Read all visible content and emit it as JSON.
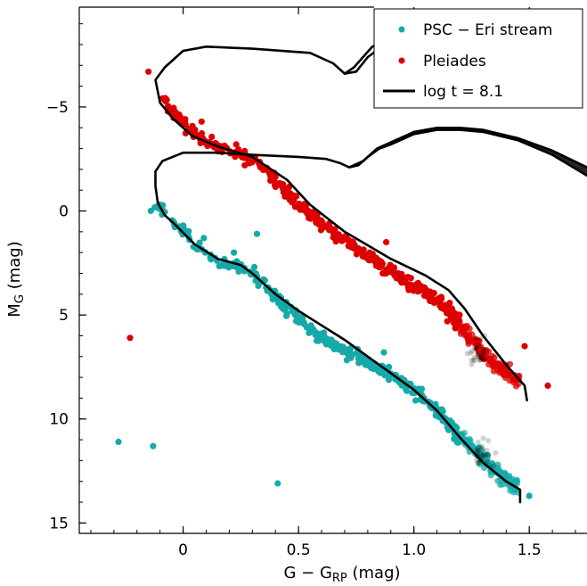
{
  "chart_data": {
    "type": "scatter",
    "xlabel": "G − G",
    "xlabel_sub": "RP",
    "xlabel_unit": " (mag)",
    "ylabel": "M",
    "ylabel_sub": "G",
    "ylabel_unit": " (mag)",
    "xlim": [
      -0.45,
      1.75
    ],
    "ylim": [
      15.5,
      -9.8
    ],
    "y_inverted": true,
    "x_ticks": [
      0,
      0.5,
      1.0,
      1.5
    ],
    "x_tick_labels": [
      "0",
      "0.5",
      "1.0",
      "1.5"
    ],
    "y_ticks": [
      -5,
      0,
      5,
      10,
      15
    ],
    "y_tick_labels": [
      "−5",
      "0",
      "5",
      "10",
      "15"
    ],
    "grid": false,
    "legend_position": "top-right",
    "colors": {
      "psc": "#17a9a9",
      "pleiades": "#dd0000",
      "isochrone": "#000000"
    },
    "series": [
      {
        "name": "PSC − Eri stream",
        "kind": "scatter",
        "sequence": [
          [
            -0.12,
            -0.2
          ],
          [
            -0.06,
            0.4
          ],
          [
            0.0,
            0.9
          ],
          [
            0.05,
            1.6
          ],
          [
            0.1,
            2.1
          ],
          [
            0.15,
            2.4
          ],
          [
            0.2,
            2.6
          ],
          [
            0.25,
            2.7
          ],
          [
            0.3,
            3.0
          ],
          [
            0.35,
            3.5
          ],
          [
            0.4,
            4.1
          ],
          [
            0.45,
            4.7
          ],
          [
            0.5,
            5.2
          ],
          [
            0.55,
            5.7
          ],
          [
            0.6,
            6.1
          ],
          [
            0.65,
            6.4
          ],
          [
            0.7,
            6.7
          ],
          [
            0.75,
            7.0
          ],
          [
            0.8,
            7.3
          ],
          [
            0.85,
            7.6
          ],
          [
            0.9,
            7.9
          ],
          [
            0.95,
            8.2
          ],
          [
            1.0,
            8.6
          ],
          [
            1.05,
            9.1
          ],
          [
            1.1,
            9.6
          ],
          [
            1.15,
            10.2
          ],
          [
            1.2,
            10.8
          ],
          [
            1.25,
            11.4
          ],
          [
            1.3,
            11.9
          ],
          [
            1.35,
            12.4
          ],
          [
            1.4,
            12.9
          ],
          [
            1.45,
            13.2
          ]
        ],
        "outliers": [
          [
            -0.28,
            11.1
          ],
          [
            -0.13,
            11.3
          ],
          [
            0.41,
            13.1
          ],
          [
            0.32,
            1.1
          ],
          [
            0.22,
            2.0
          ],
          [
            0.87,
            6.8
          ],
          [
            1.5,
            13.7
          ],
          [
            -0.14,
            0.0
          ],
          [
            0.09,
            1.3
          ]
        ]
      },
      {
        "name": "Pleiades",
        "kind": "scatter",
        "sequence": [
          [
            -0.09,
            -5.4
          ],
          [
            -0.06,
            -4.9
          ],
          [
            -0.02,
            -4.5
          ],
          [
            0.02,
            -4.0
          ],
          [
            0.06,
            -3.6
          ],
          [
            0.1,
            -3.3
          ],
          [
            0.15,
            -3.1
          ],
          [
            0.2,
            -2.9
          ],
          [
            0.25,
            -2.7
          ],
          [
            0.3,
            -2.4
          ],
          [
            0.35,
            -2.1
          ],
          [
            0.4,
            -1.5
          ],
          [
            0.45,
            -0.9
          ],
          [
            0.5,
            -0.3
          ],
          [
            0.55,
            0.2
          ],
          [
            0.6,
            0.6
          ],
          [
            0.65,
            1.0
          ],
          [
            0.7,
            1.4
          ],
          [
            0.75,
            1.8
          ],
          [
            0.8,
            2.2
          ],
          [
            0.85,
            2.5
          ],
          [
            0.9,
            2.9
          ],
          [
            0.95,
            3.3
          ],
          [
            1.0,
            3.6
          ],
          [
            1.05,
            3.9
          ],
          [
            1.1,
            4.3
          ],
          [
            1.15,
            4.8
          ],
          [
            1.2,
            5.5
          ],
          [
            1.25,
            6.2
          ],
          [
            1.3,
            6.8
          ],
          [
            1.35,
            7.3
          ],
          [
            1.4,
            7.8
          ],
          [
            1.45,
            8.3
          ]
        ],
        "outliers": [
          [
            -0.15,
            -6.7
          ],
          [
            -0.23,
            6.1
          ],
          [
            1.58,
            8.4
          ],
          [
            0.23,
            -3.2
          ],
          [
            0.88,
            1.5
          ],
          [
            0.08,
            -4.3
          ],
          [
            1.48,
            6.5
          ]
        ]
      },
      {
        "name": "log t = 8.1",
        "kind": "line",
        "segments": [
          [
            [
              -0.08,
              -6.9
            ],
            [
              -0.12,
              -6.3
            ],
            [
              -0.1,
              -5.2
            ],
            [
              -0.04,
              -4.4
            ],
            [
              0.04,
              -3.6
            ],
            [
              0.15,
              -3.1
            ],
            [
              0.3,
              -2.6
            ],
            [
              0.45,
              -1.5
            ],
            [
              0.55,
              -0.3
            ],
            [
              0.7,
              1.0
            ],
            [
              0.9,
              2.3
            ],
            [
              1.05,
              3.1
            ],
            [
              1.15,
              3.8
            ],
            [
              1.22,
              4.7
            ],
            [
              1.3,
              6.0
            ],
            [
              1.4,
              7.4
            ],
            [
              1.48,
              8.4
            ],
            [
              1.49,
              9.1
            ]
          ],
          [
            [
              -0.08,
              -6.9
            ],
            [
              0.0,
              -7.7
            ],
            [
              0.1,
              -7.9
            ],
            [
              0.3,
              -7.8
            ],
            [
              0.55,
              -7.6
            ],
            [
              0.65,
              -7.1
            ],
            [
              0.7,
              -6.6
            ],
            [
              0.75,
              -6.7
            ],
            [
              0.8,
              -7.4
            ],
            [
              0.85,
              -7.8
            ]
          ],
          [
            [
              0.7,
              -6.6
            ],
            [
              0.74,
              -6.9
            ],
            [
              0.82,
              -7.9
            ],
            [
              0.88,
              -8.2
            ]
          ],
          [
            [
              -0.12,
              -1.9
            ],
            [
              -0.09,
              -2.4
            ],
            [
              0.0,
              -2.8
            ],
            [
              0.15,
              -2.8
            ],
            [
              0.3,
              -2.7
            ],
            [
              0.5,
              -2.6
            ],
            [
              0.62,
              -2.5
            ],
            [
              0.68,
              -2.3
            ],
            [
              0.72,
              -2.1
            ],
            [
              0.76,
              -2.2
            ],
            [
              0.8,
              -2.6
            ],
            [
              0.85,
              -3.0
            ],
            [
              0.9,
              -3.2
            ]
          ],
          [
            [
              0.72,
              -2.1
            ],
            [
              0.78,
              -2.4
            ],
            [
              0.84,
              -3.0
            ],
            [
              0.9,
              -3.3
            ]
          ],
          [
            [
              0.9,
              -3.2
            ],
            [
              1.0,
              -3.7
            ],
            [
              1.1,
              -3.9
            ],
            [
              1.2,
              -3.9
            ],
            [
              1.3,
              -3.8
            ],
            [
              1.45,
              -3.4
            ],
            [
              1.6,
              -2.7
            ],
            [
              1.75,
              -1.7
            ]
          ],
          [
            [
              0.9,
              -3.3
            ],
            [
              1.0,
              -3.8
            ],
            [
              1.1,
              -4.0
            ],
            [
              1.2,
              -4.0
            ],
            [
              1.3,
              -3.9
            ],
            [
              1.45,
              -3.5
            ],
            [
              1.6,
              -2.9
            ],
            [
              1.75,
              -2.1
            ]
          ],
          [
            [
              -0.12,
              -1.9
            ],
            [
              -0.12,
              -1.2
            ],
            [
              -0.11,
              -0.4
            ],
            [
              -0.08,
              0.2
            ],
            [
              -0.04,
              0.6
            ],
            [
              0.05,
              1.6
            ],
            [
              0.15,
              2.3
            ],
            [
              0.25,
              2.6
            ],
            [
              0.3,
              3.0
            ],
            [
              0.4,
              4.0
            ],
            [
              0.5,
              4.8
            ],
            [
              0.6,
              5.5
            ],
            [
              0.7,
              6.2
            ],
            [
              0.8,
              7.0
            ],
            [
              0.9,
              7.8
            ],
            [
              1.0,
              8.6
            ],
            [
              1.1,
              9.6
            ],
            [
              1.2,
              10.9
            ],
            [
              1.3,
              12.1
            ],
            [
              1.4,
              13.0
            ],
            [
              1.46,
              13.4
            ],
            [
              1.46,
              14.0
            ]
          ]
        ]
      }
    ]
  }
}
